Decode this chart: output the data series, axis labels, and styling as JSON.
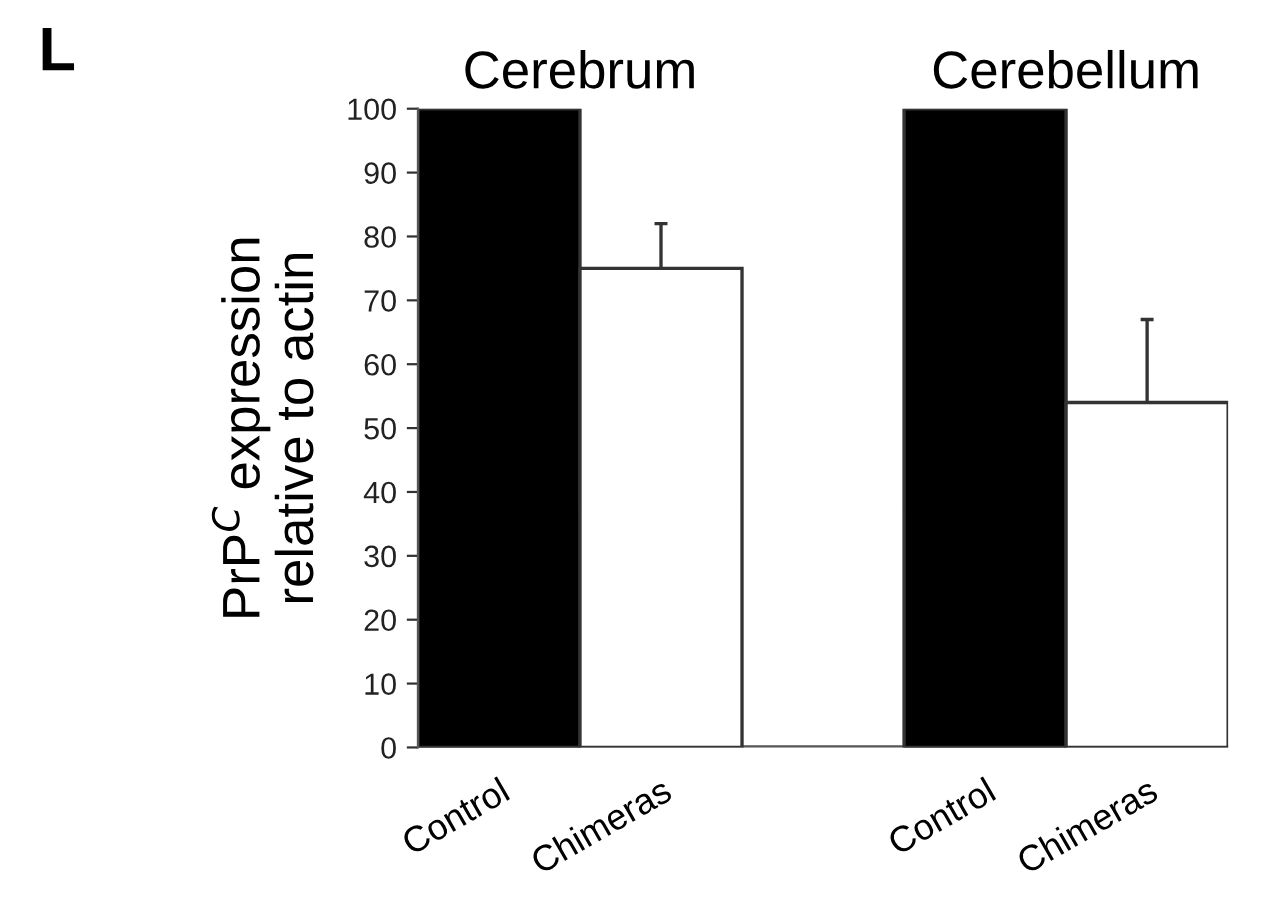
{
  "chart_data": {
    "type": "bar",
    "ylabel": "PrP$^{C}$ expression\nrelative to actin",
    "categories": [
      "Control",
      "Chimeras",
      null,
      "Control",
      "Chimeras"
    ],
    "values": [
      100,
      75,
      null,
      100,
      54
    ],
    "colors": [
      "#000000",
      "#ffffff",
      "#ffffff",
      "#000000",
      "#ffffff"
    ],
    "errors": [
      null,
      [
        75,
        82
      ],
      null,
      null,
      [
        54,
        67
      ]
    ],
    "ylim": [
      0,
      100
    ],
    "yticks": [
      0,
      10,
      20,
      30,
      40,
      50,
      60,
      70,
      80,
      90,
      100
    ],
    "grid": false,
    "legend": false,
    "annotations": [
      "L",
      "Cerebrum",
      "Cerebellum"
    ]
  }
}
